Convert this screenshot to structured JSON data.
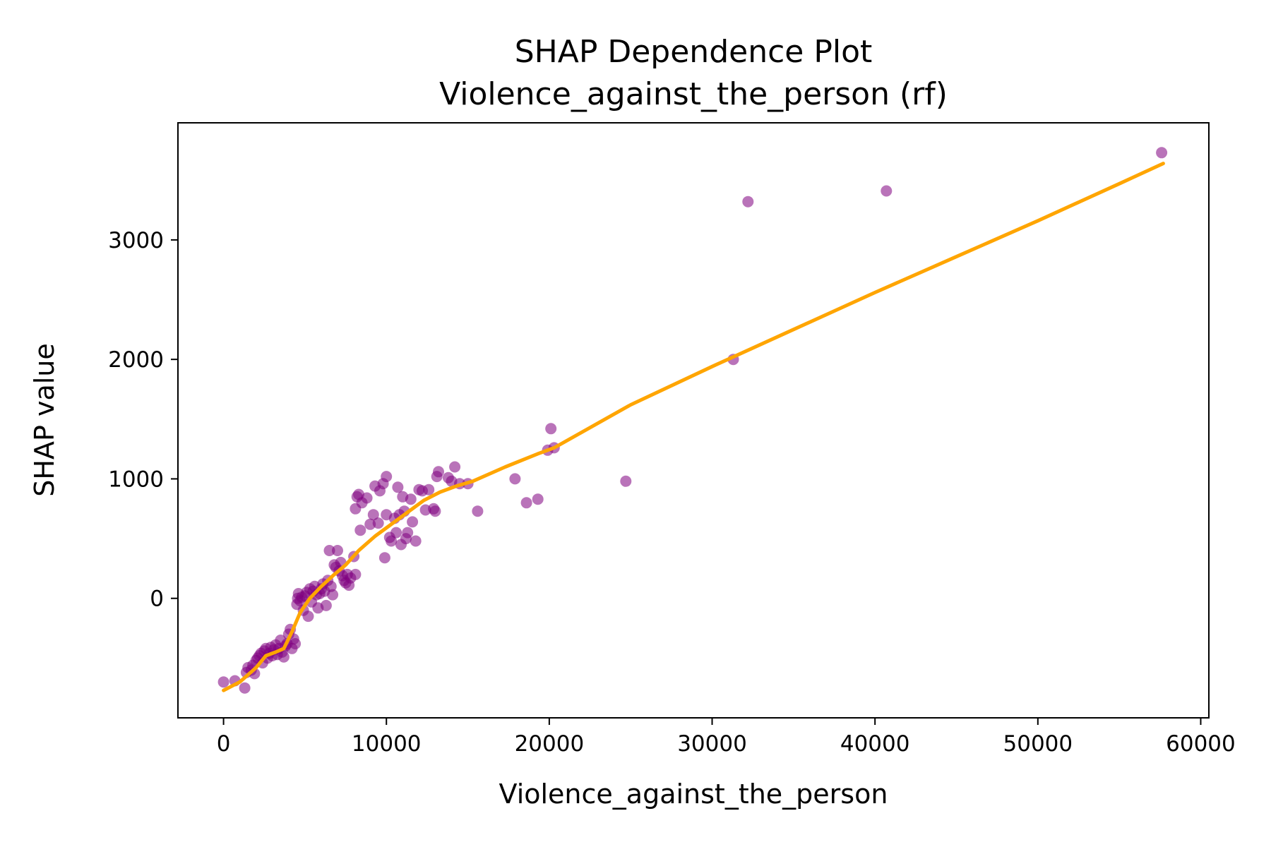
{
  "chart_data": {
    "type": "scatter",
    "title": "SHAP Dependence Plot",
    "subtitle": "Violence_against_the_person (rf)",
    "xlabel": "Violence_against_the_person",
    "ylabel": "SHAP value",
    "xlim": [
      -2800,
      60500
    ],
    "ylim": [
      -1000,
      3980
    ],
    "xticks": [
      0,
      10000,
      20000,
      30000,
      40000,
      50000,
      60000
    ],
    "xtick_labels": [
      "0",
      "10000",
      "20000",
      "30000",
      "40000",
      "50000",
      "60000"
    ],
    "yticks": [
      0,
      1000,
      2000,
      3000
    ],
    "ytick_labels": [
      "0",
      "1000",
      "2000",
      "3000"
    ],
    "grid": false,
    "colors": {
      "points": "#800080",
      "trend": "#ffa500",
      "axes": "#000000"
    },
    "series": [
      {
        "type": "scatter",
        "points": [
          [
            0,
            -700
          ],
          [
            700,
            -690
          ],
          [
            1300,
            -750
          ],
          [
            1400,
            -620
          ],
          [
            1500,
            -580
          ],
          [
            1700,
            -600
          ],
          [
            1800,
            -560
          ],
          [
            1900,
            -630
          ],
          [
            2000,
            -520
          ],
          [
            2100,
            -500
          ],
          [
            2200,
            -480
          ],
          [
            2300,
            -460
          ],
          [
            2400,
            -540
          ],
          [
            2500,
            -440
          ],
          [
            2600,
            -420
          ],
          [
            2700,
            -500
          ],
          [
            2800,
            -460
          ],
          [
            2900,
            -410
          ],
          [
            3000,
            -480
          ],
          [
            3100,
            -430
          ],
          [
            3200,
            -390
          ],
          [
            3300,
            -470
          ],
          [
            3400,
            -420
          ],
          [
            3500,
            -350
          ],
          [
            3600,
            -450
          ],
          [
            3700,
            -490
          ],
          [
            3800,
            -400
          ],
          [
            3900,
            -380
          ],
          [
            4000,
            -300
          ],
          [
            4100,
            -260
          ],
          [
            4200,
            -420
          ],
          [
            4300,
            -340
          ],
          [
            4400,
            -380
          ],
          [
            4500,
            -50
          ],
          [
            4550,
            0
          ],
          [
            4600,
            40
          ],
          [
            4700,
            -20
          ],
          [
            4800,
            10
          ],
          [
            4900,
            -100
          ],
          [
            5000,
            20
          ],
          [
            5100,
            50
          ],
          [
            5200,
            -150
          ],
          [
            5300,
            80
          ],
          [
            5400,
            -30
          ],
          [
            5500,
            60
          ],
          [
            5600,
            100
          ],
          [
            5700,
            30
          ],
          [
            5800,
            -80
          ],
          [
            5900,
            40
          ],
          [
            6000,
            80
          ],
          [
            6100,
            120
          ],
          [
            6200,
            60
          ],
          [
            6300,
            -60
          ],
          [
            6400,
            150
          ],
          [
            6500,
            400
          ],
          [
            6600,
            100
          ],
          [
            6700,
            30
          ],
          [
            6800,
            280
          ],
          [
            6900,
            260
          ],
          [
            7000,
            400
          ],
          [
            7100,
            230
          ],
          [
            7200,
            300
          ],
          [
            7300,
            190
          ],
          [
            7400,
            150
          ],
          [
            7500,
            130
          ],
          [
            7600,
            200
          ],
          [
            7700,
            110
          ],
          [
            7800,
            170
          ],
          [
            8000,
            350
          ],
          [
            8100,
            200
          ],
          [
            8100,
            750
          ],
          [
            8200,
            850
          ],
          [
            8300,
            870
          ],
          [
            8400,
            570
          ],
          [
            8500,
            800
          ],
          [
            8800,
            840
          ],
          [
            9000,
            620
          ],
          [
            9200,
            700
          ],
          [
            9300,
            940
          ],
          [
            9500,
            630
          ],
          [
            9600,
            900
          ],
          [
            9800,
            960
          ],
          [
            9900,
            340
          ],
          [
            10000,
            1020
          ],
          [
            10000,
            700
          ],
          [
            10200,
            510
          ],
          [
            10300,
            480
          ],
          [
            10500,
            670
          ],
          [
            10600,
            550
          ],
          [
            10700,
            930
          ],
          [
            10800,
            700
          ],
          [
            10900,
            450
          ],
          [
            11000,
            850
          ],
          [
            11100,
            730
          ],
          [
            11200,
            500
          ],
          [
            11300,
            550
          ],
          [
            11500,
            830
          ],
          [
            11600,
            640
          ],
          [
            11800,
            480
          ],
          [
            12000,
            910
          ],
          [
            12200,
            900
          ],
          [
            12400,
            740
          ],
          [
            12600,
            910
          ],
          [
            12900,
            750
          ],
          [
            13000,
            730
          ],
          [
            13100,
            1020
          ],
          [
            13200,
            1060
          ],
          [
            13800,
            1010
          ],
          [
            14000,
            980
          ],
          [
            14200,
            1100
          ],
          [
            14500,
            960
          ],
          [
            15000,
            960
          ],
          [
            15600,
            730
          ],
          [
            17900,
            1000
          ],
          [
            18600,
            800
          ],
          [
            19300,
            830
          ],
          [
            19900,
            1240
          ],
          [
            20100,
            1420
          ],
          [
            20300,
            1260
          ],
          [
            24700,
            980
          ],
          [
            31300,
            2000
          ],
          [
            32200,
            3320
          ],
          [
            40700,
            3410
          ],
          [
            57600,
            3730
          ]
        ]
      },
      {
        "type": "line",
        "points": [
          [
            0,
            -770
          ],
          [
            1000,
            -700
          ],
          [
            2000,
            -580
          ],
          [
            2600,
            -480
          ],
          [
            3200,
            -450
          ],
          [
            3700,
            -420
          ],
          [
            4200,
            -280
          ],
          [
            4700,
            -120
          ],
          [
            5300,
            0
          ],
          [
            6000,
            100
          ],
          [
            6800,
            200
          ],
          [
            7500,
            280
          ],
          [
            8300,
            400
          ],
          [
            9300,
            520
          ],
          [
            10300,
            620
          ],
          [
            11300,
            720
          ],
          [
            12300,
            820
          ],
          [
            13300,
            890
          ],
          [
            14300,
            940
          ],
          [
            15300,
            980
          ],
          [
            17300,
            1100
          ],
          [
            19300,
            1210
          ],
          [
            20300,
            1260
          ],
          [
            25000,
            1620
          ],
          [
            30000,
            1940
          ],
          [
            35000,
            2250
          ],
          [
            40000,
            2560
          ],
          [
            45000,
            2860
          ],
          [
            50000,
            3160
          ],
          [
            55000,
            3470
          ],
          [
            57700,
            3640
          ]
        ]
      }
    ]
  }
}
